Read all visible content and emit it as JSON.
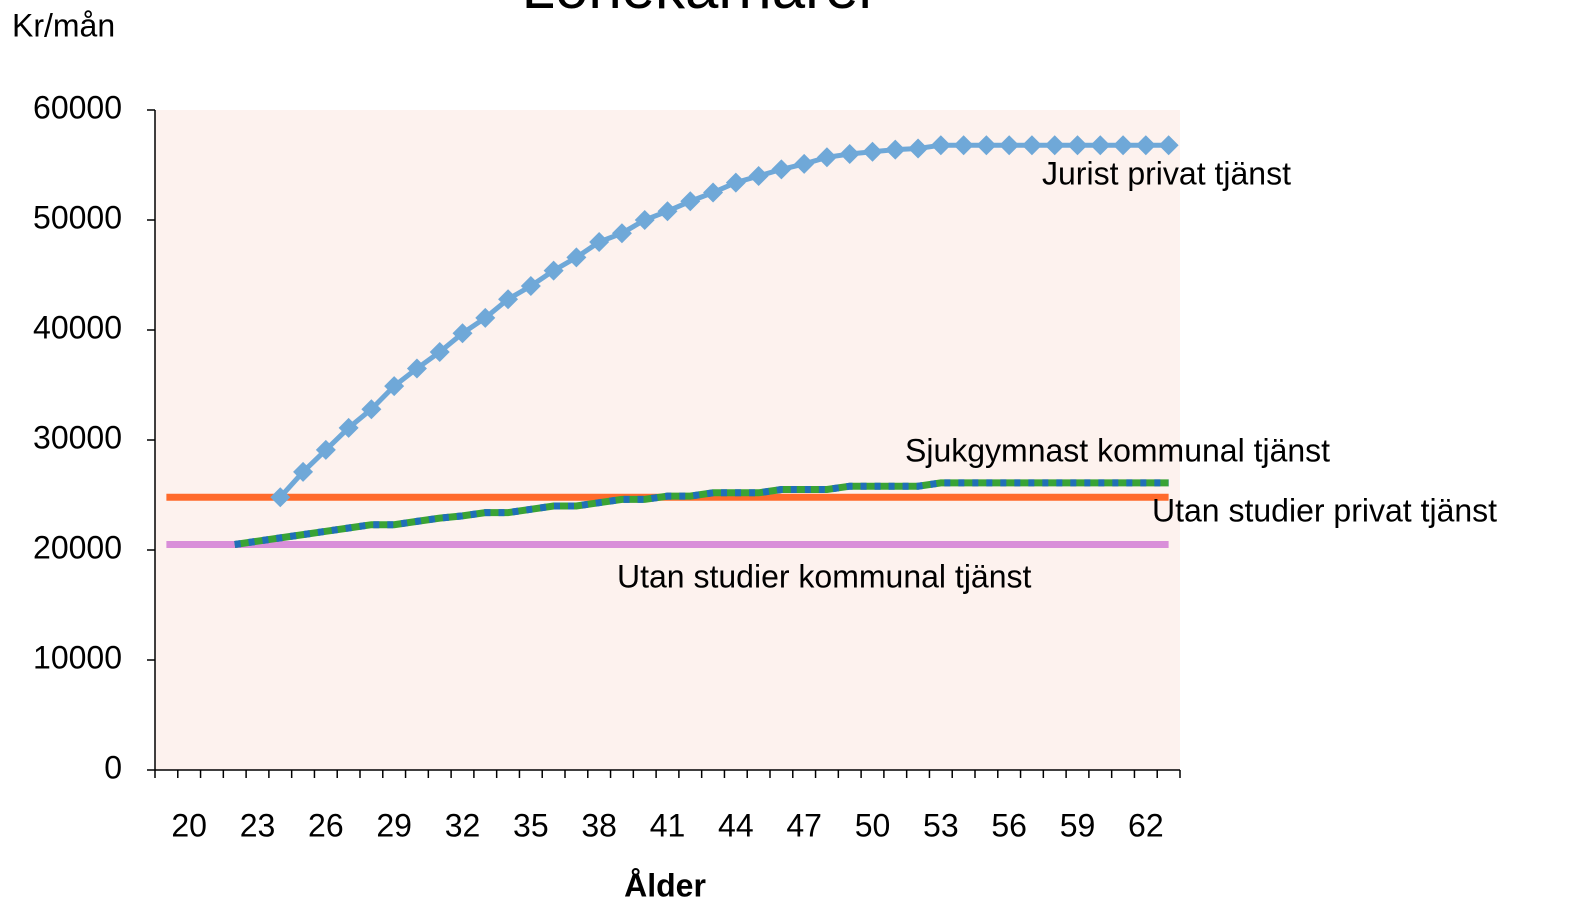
{
  "chart_data": {
    "type": "line",
    "title": "Lönekarriärer",
    "y_label": "Kr/mån",
    "x_label": "Ålder",
    "categories": [
      null,
      20,
      null,
      null,
      23,
      null,
      null,
      26,
      null,
      null,
      29,
      null,
      null,
      32,
      null,
      null,
      35,
      null,
      null,
      38,
      null,
      null,
      41,
      null,
      null,
      44,
      null,
      null,
      47,
      null,
      null,
      50,
      null,
      null,
      53,
      null,
      null,
      56,
      null,
      null,
      59,
      null,
      null,
      62,
      null
    ],
    "ylim": [
      0,
      60000
    ],
    "yticks": [
      0,
      10000,
      20000,
      30000,
      40000,
      50000,
      60000
    ],
    "series": [
      {
        "name": "Jurist privat tjänst",
        "color": "#6fa8d8",
        "values": [
          null,
          null,
          null,
          null,
          null,
          24800,
          27100,
          29100,
          31100,
          32800,
          34900,
          36500,
          38000,
          39700,
          41100,
          42800,
          44000,
          45400,
          46600,
          48000,
          48800,
          50000,
          50800,
          51700,
          52500,
          53400,
          54000,
          54600,
          55100,
          55700,
          56000,
          56200,
          56400,
          56500,
          56800,
          56800,
          56800,
          56800,
          56800,
          56800,
          56800,
          56800,
          56800,
          56800,
          56800
        ]
      },
      {
        "name": "Sjukgymnast kommunal tjänst",
        "color": "#3aa335",
        "values": [
          null,
          null,
          null,
          20500,
          20800,
          21100,
          21400,
          21700,
          22000,
          22300,
          22300,
          22600,
          22900,
          23100,
          23400,
          23400,
          23700,
          24000,
          24000,
          24300,
          24600,
          24600,
          24900,
          24900,
          25200,
          25200,
          25200,
          25500,
          25500,
          25500,
          25800,
          25800,
          25800,
          25800,
          26100,
          26100,
          26100,
          26100,
          26100,
          26100,
          26100,
          26100,
          26100,
          26100,
          26100
        ]
      },
      {
        "name": "Utan studier privat tjänst",
        "color": "#ff6a2b",
        "values": [
          24800,
          24800,
          24800,
          24800,
          24800,
          24800,
          24800,
          24800,
          24800,
          24800,
          24800,
          24800,
          24800,
          24800,
          24800,
          24800,
          24800,
          24800,
          24800,
          24800,
          24800,
          24800,
          24800,
          24800,
          24800,
          24800,
          24800,
          24800,
          24800,
          24800,
          24800,
          24800,
          24800,
          24800,
          24800,
          24800,
          24800,
          24800,
          24800,
          24800,
          24800,
          24800,
          24800,
          24800,
          24800
        ]
      },
      {
        "name": "Utan studier kommunal tjänst",
        "color": "#d98fd9",
        "values": [
          20500,
          20500,
          20500,
          20500,
          20500,
          20500,
          20500,
          20500,
          20500,
          20500,
          20500,
          20500,
          20500,
          20500,
          20500,
          20500,
          20500,
          20500,
          20500,
          20500,
          20500,
          20500,
          20500,
          20500,
          20500,
          20500,
          20500,
          20500,
          20500,
          20500,
          20500,
          20500,
          20500,
          20500,
          20500,
          20500,
          20500,
          20500,
          20500,
          20500,
          20500,
          20500,
          20500,
          20500,
          20500
        ]
      }
    ]
  }
}
